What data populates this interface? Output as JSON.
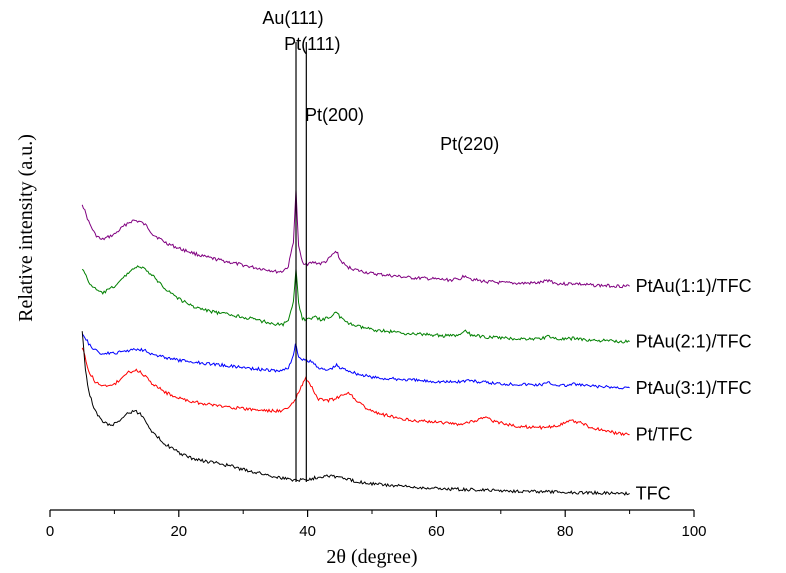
{
  "chart_data": {
    "type": "line",
    "xlabel": "2θ (degree)",
    "ylabel": "Relative intensity (a.u.)",
    "xlim": [
      0,
      100
    ],
    "x_ticks": [
      0,
      20,
      40,
      60,
      80,
      100
    ],
    "y_ticks_shown": false,
    "grid": false,
    "legend": "none (series labeled at right end of each curve)",
    "series": [
      {
        "name": "PtAu(1:1)/TFC",
        "color": "#800080",
        "points": [
          [
            5,
            8.55
          ],
          [
            6,
            7.9
          ],
          [
            7,
            7.45
          ],
          [
            8,
            7.25
          ],
          [
            9,
            7.35
          ],
          [
            10,
            7.45
          ],
          [
            11,
            7.65
          ],
          [
            12,
            7.85
          ],
          [
            13,
            7.95
          ],
          [
            14,
            7.9
          ],
          [
            15,
            7.75
          ],
          [
            16,
            7.45
          ],
          [
            18,
            7.15
          ],
          [
            20,
            6.95
          ],
          [
            22,
            6.8
          ],
          [
            24,
            6.65
          ],
          [
            26,
            6.55
          ],
          [
            28,
            6.45
          ],
          [
            30,
            6.35
          ],
          [
            32,
            6.25
          ],
          [
            34,
            6.18
          ],
          [
            35,
            6.12
          ],
          [
            36,
            6.12
          ],
          [
            37,
            6.3
          ],
          [
            37.8,
            7.2
          ],
          [
            38.2,
            9.0
          ],
          [
            38.6,
            7.0
          ],
          [
            39.2,
            6.45
          ],
          [
            40,
            6.4
          ],
          [
            41,
            6.45
          ],
          [
            42,
            6.4
          ],
          [
            43,
            6.5
          ],
          [
            44,
            6.75
          ],
          [
            44.5,
            6.85
          ],
          [
            45,
            6.55
          ],
          [
            46,
            6.3
          ],
          [
            48,
            6.15
          ],
          [
            50,
            6.05
          ],
          [
            52,
            6.0
          ],
          [
            54,
            5.95
          ],
          [
            56,
            5.9
          ],
          [
            58,
            5.88
          ],
          [
            60,
            5.85
          ],
          [
            62,
            5.82
          ],
          [
            63.5,
            5.85
          ],
          [
            64.5,
            6.0
          ],
          [
            65.5,
            5.85
          ],
          [
            67,
            5.78
          ],
          [
            70,
            5.72
          ],
          [
            73,
            5.7
          ],
          [
            76,
            5.72
          ],
          [
            77.5,
            5.82
          ],
          [
            78.5,
            5.7
          ],
          [
            80,
            5.68
          ],
          [
            81.5,
            5.7
          ],
          [
            83,
            5.65
          ],
          [
            86,
            5.62
          ],
          [
            90,
            5.6
          ]
        ]
      },
      {
        "name": "PtAu(2:1)/TFC",
        "color": "#008000",
        "points": [
          [
            5,
            6.25
          ],
          [
            6,
            5.75
          ],
          [
            7,
            5.5
          ],
          [
            8,
            5.35
          ],
          [
            9,
            5.45
          ],
          [
            10,
            5.6
          ],
          [
            11,
            5.8
          ],
          [
            12,
            6.05
          ],
          [
            13,
            6.25
          ],
          [
            14,
            6.3
          ],
          [
            15,
            6.15
          ],
          [
            16,
            5.95
          ],
          [
            18,
            5.5
          ],
          [
            20,
            5.15
          ],
          [
            22,
            4.9
          ],
          [
            24,
            4.75
          ],
          [
            26,
            4.65
          ],
          [
            28,
            4.58
          ],
          [
            30,
            4.5
          ],
          [
            32,
            4.4
          ],
          [
            34,
            4.3
          ],
          [
            35,
            4.25
          ],
          [
            36,
            4.22
          ],
          [
            37,
            4.35
          ],
          [
            37.8,
            5.0
          ],
          [
            38.2,
            6.25
          ],
          [
            38.6,
            5.0
          ],
          [
            39.2,
            4.45
          ],
          [
            40,
            4.4
          ],
          [
            41,
            4.5
          ],
          [
            42,
            4.4
          ],
          [
            43,
            4.45
          ],
          [
            44,
            4.6
          ],
          [
            44.5,
            4.7
          ],
          [
            45,
            4.5
          ],
          [
            46,
            4.3
          ],
          [
            48,
            4.15
          ],
          [
            50,
            4.05
          ],
          [
            52,
            4.0
          ],
          [
            54,
            3.95
          ],
          [
            56,
            3.9
          ],
          [
            58,
            3.88
          ],
          [
            60,
            3.85
          ],
          [
            62,
            3.82
          ],
          [
            63.5,
            3.85
          ],
          [
            64.5,
            3.98
          ],
          [
            65.5,
            3.85
          ],
          [
            67,
            3.8
          ],
          [
            70,
            3.75
          ],
          [
            73,
            3.72
          ],
          [
            76,
            3.72
          ],
          [
            77.5,
            3.82
          ],
          [
            78.5,
            3.72
          ],
          [
            80,
            3.7
          ],
          [
            81.5,
            3.75
          ],
          [
            83,
            3.68
          ],
          [
            86,
            3.65
          ],
          [
            90,
            3.62
          ]
        ]
      },
      {
        "name": "PtAu(3:1)/TFC",
        "color": "#0000ff",
        "points": [
          [
            5,
            3.95
          ],
          [
            6,
            3.55
          ],
          [
            7,
            3.3
          ],
          [
            8,
            3.2
          ],
          [
            9,
            3.2
          ],
          [
            10,
            3.2
          ],
          [
            11,
            3.25
          ],
          [
            12,
            3.3
          ],
          [
            13,
            3.35
          ],
          [
            14,
            3.35
          ],
          [
            15,
            3.3
          ],
          [
            16,
            3.15
          ],
          [
            18,
            3.05
          ],
          [
            20,
            2.95
          ],
          [
            22,
            2.9
          ],
          [
            24,
            2.85
          ],
          [
            26,
            2.8
          ],
          [
            28,
            2.75
          ],
          [
            30,
            2.7
          ],
          [
            32,
            2.65
          ],
          [
            34,
            2.6
          ],
          [
            35,
            2.58
          ],
          [
            36,
            2.58
          ],
          [
            37,
            2.7
          ],
          [
            37.8,
            3.1
          ],
          [
            38.1,
            3.55
          ],
          [
            38.6,
            3.1
          ],
          [
            39.2,
            2.95
          ],
          [
            40,
            2.95
          ],
          [
            41,
            2.85
          ],
          [
            42,
            2.65
          ],
          [
            43,
            2.6
          ],
          [
            44,
            2.7
          ],
          [
            44.5,
            2.78
          ],
          [
            45,
            2.68
          ],
          [
            46,
            2.62
          ],
          [
            48,
            2.45
          ],
          [
            50,
            2.35
          ],
          [
            52,
            2.3
          ],
          [
            54,
            2.28
          ],
          [
            56,
            2.25
          ],
          [
            58,
            2.22
          ],
          [
            60,
            2.2
          ],
          [
            62,
            2.18
          ],
          [
            64,
            2.2
          ],
          [
            65,
            2.25
          ],
          [
            66,
            2.2
          ],
          [
            68,
            2.15
          ],
          [
            70,
            2.12
          ],
          [
            73,
            2.1
          ],
          [
            76,
            2.08
          ],
          [
            77.5,
            2.15
          ],
          [
            78.5,
            2.08
          ],
          [
            80,
            2.05
          ],
          [
            81.5,
            2.1
          ],
          [
            83,
            2.05
          ],
          [
            86,
            2.0
          ],
          [
            90,
            1.97
          ]
        ]
      },
      {
        "name": "Pt/TFC",
        "color": "#ff0000",
        "points": [
          [
            5,
            3.45
          ],
          [
            6,
            2.55
          ],
          [
            7,
            2.2
          ],
          [
            8,
            2.05
          ],
          [
            9,
            2.0
          ],
          [
            10,
            2.1
          ],
          [
            11,
            2.3
          ],
          [
            12,
            2.5
          ],
          [
            13,
            2.6
          ],
          [
            14,
            2.55
          ],
          [
            15,
            2.35
          ],
          [
            16,
            2.1
          ],
          [
            18,
            1.8
          ],
          [
            20,
            1.6
          ],
          [
            22,
            1.48
          ],
          [
            24,
            1.4
          ],
          [
            26,
            1.33
          ],
          [
            28,
            1.28
          ],
          [
            30,
            1.22
          ],
          [
            32,
            1.18
          ],
          [
            34,
            1.15
          ],
          [
            36,
            1.15
          ],
          [
            37,
            1.25
          ],
          [
            38,
            1.5
          ],
          [
            39,
            2.0
          ],
          [
            39.7,
            2.3
          ],
          [
            40.5,
            2.05
          ],
          [
            41.5,
            1.6
          ],
          [
            42.5,
            1.5
          ],
          [
            44,
            1.55
          ],
          [
            45,
            1.65
          ],
          [
            46,
            1.75
          ],
          [
            46.5,
            1.8
          ],
          [
            47.5,
            1.55
          ],
          [
            49,
            1.25
          ],
          [
            51,
            1.05
          ],
          [
            53,
            0.95
          ],
          [
            55,
            0.85
          ],
          [
            57,
            0.8
          ],
          [
            60,
            0.75
          ],
          [
            62,
            0.7
          ],
          [
            64,
            0.68
          ],
          [
            66,
            0.8
          ],
          [
            67.5,
            0.9
          ],
          [
            69,
            0.78
          ],
          [
            71,
            0.65
          ],
          [
            73,
            0.6
          ],
          [
            75,
            0.56
          ],
          [
            77,
            0.55
          ],
          [
            79,
            0.65
          ],
          [
            81,
            0.8
          ],
          [
            82,
            0.75
          ],
          [
            84,
            0.55
          ],
          [
            86,
            0.45
          ],
          [
            88,
            0.35
          ],
          [
            90,
            0.3
          ]
        ]
      },
      {
        "name": "TFC",
        "color": "#000000",
        "points": [
          [
            5,
            4.05
          ],
          [
            5.5,
            2.6
          ],
          [
            6,
            1.85
          ],
          [
            7,
            1.15
          ],
          [
            8,
            0.8
          ],
          [
            9,
            0.65
          ],
          [
            10,
            0.68
          ],
          [
            11,
            0.85
          ],
          [
            12,
            1.05
          ],
          [
            13,
            1.15
          ],
          [
            14,
            1.05
          ],
          [
            15,
            0.75
          ],
          [
            16,
            0.35
          ],
          [
            18,
            -0.05
          ],
          [
            20,
            -0.35
          ],
          [
            22,
            -0.55
          ],
          [
            24,
            -0.65
          ],
          [
            26,
            -0.72
          ],
          [
            28,
            -0.82
          ],
          [
            30,
            -0.95
          ],
          [
            32,
            -1.05
          ],
          [
            34,
            -1.15
          ],
          [
            36,
            -1.25
          ],
          [
            38,
            -1.32
          ],
          [
            40,
            -1.3
          ],
          [
            42,
            -1.2
          ],
          [
            43,
            -1.15
          ],
          [
            45,
            -1.22
          ],
          [
            47,
            -1.35
          ],
          [
            50,
            -1.45
          ],
          [
            53,
            -1.52
          ],
          [
            56,
            -1.57
          ],
          [
            60,
            -1.62
          ],
          [
            65,
            -1.67
          ],
          [
            70,
            -1.7
          ],
          [
            75,
            -1.73
          ],
          [
            80,
            -1.76
          ],
          [
            85,
            -1.78
          ],
          [
            90,
            -1.8
          ]
        ]
      }
    ],
    "reference_lines": [
      {
        "label": "Au(111)",
        "x": 38.2
      },
      {
        "label": "Pt(111)",
        "x": 39.8
      }
    ],
    "peak_labels": [
      {
        "label": "Pt(200)",
        "x": 46.5
      },
      {
        "label": "Pt(220)",
        "x": 67.5
      }
    ]
  }
}
